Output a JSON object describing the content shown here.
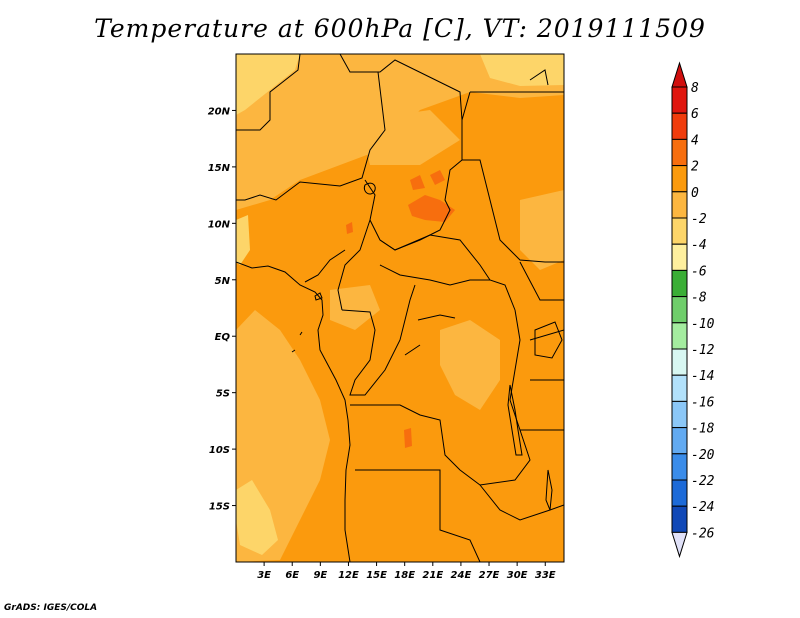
{
  "title": "Temperature at 600hPa [C], VT: 2019111509",
  "footer": "GrADS: IGES/COLA",
  "map": {
    "lat_labels": [
      "20N",
      "15N",
      "10N",
      "5N",
      "EQ",
      "5S",
      "10S",
      "15S"
    ],
    "lat_values": [
      20,
      15,
      10,
      5,
      0,
      -5,
      -10,
      -15
    ],
    "lon_labels": [
      "3E",
      "6E",
      "9E",
      "12E",
      "15E",
      "18E",
      "21E",
      "24E",
      "27E",
      "30E",
      "33E"
    ],
    "lon_values": [
      3,
      6,
      9,
      12,
      15,
      18,
      21,
      24,
      27,
      30,
      33
    ],
    "lon_range": [
      0,
      35
    ],
    "lat_range": [
      -20,
      25
    ]
  },
  "colorbar": {
    "labels": [
      "8",
      "6",
      "4",
      "2",
      "0",
      "-2",
      "-4",
      "-6",
      "-8",
      "-10",
      "-12",
      "-14",
      "-16",
      "-18",
      "-20",
      "-22",
      "-24",
      "-26"
    ],
    "colors": [
      "#e0160e",
      "#f03c0c",
      "#f76e0e",
      "#fb9a0d",
      "#fcb640",
      "#fdd569",
      "#feef9e",
      "#3aae36",
      "#6fce6b",
      "#a4ec9f",
      "#d8f7f2",
      "#b2e1fb",
      "#8bc7f7",
      "#62aaf1",
      "#3a8ce9",
      "#1c6ad8",
      "#1048b7",
      "#0a2782"
    ],
    "top_color": "#d00f0e",
    "bottom_color": "#e0e1f8"
  }
}
